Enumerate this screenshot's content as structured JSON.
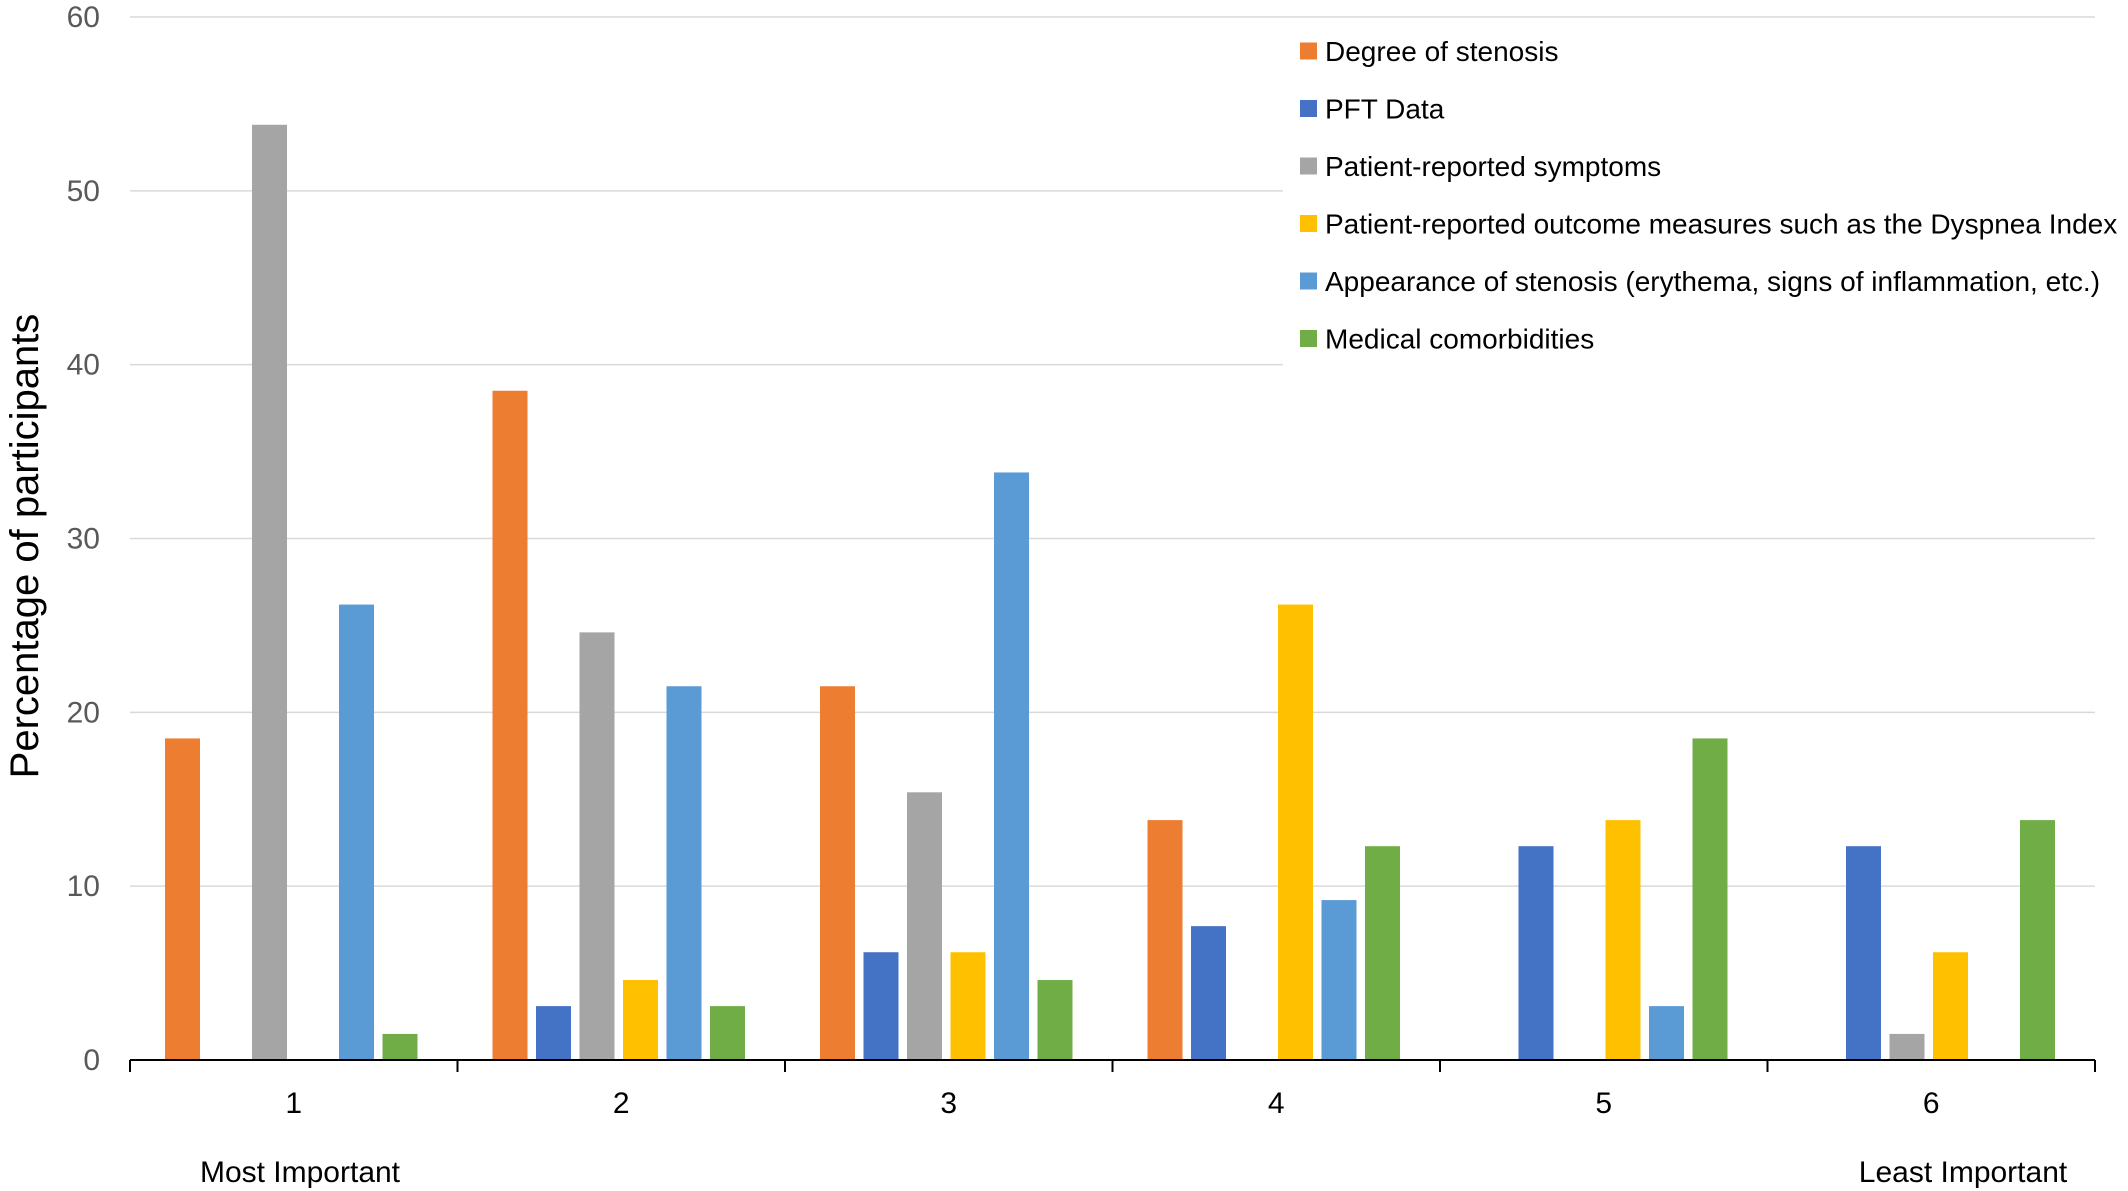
{
  "chart_data": {
    "type": "bar",
    "title": "",
    "xlabel": "",
    "ylabel": "Percentage of participants",
    "ylim": [
      0,
      60
    ],
    "yticks": [
      0,
      10,
      20,
      30,
      40,
      50,
      60
    ],
    "grid": "horizontal",
    "legend_position": "top-right",
    "categories": [
      "1",
      "2",
      "3",
      "4",
      "5",
      "6"
    ],
    "category_notes": {
      "first": "Most Important",
      "last": "Least Important"
    },
    "series": [
      {
        "name": "Degree of stenosis",
        "color": "#ED7D31",
        "values": [
          18.5,
          38.5,
          21.5,
          13.8,
          0,
          0
        ]
      },
      {
        "name": "PFT Data",
        "color": "#4472C4",
        "values": [
          0,
          3.1,
          6.2,
          7.7,
          12.3,
          12.3
        ]
      },
      {
        "name": "Patient-reported symptoms",
        "color": "#A5A5A5",
        "values": [
          53.8,
          24.6,
          15.4,
          0,
          0,
          1.5
        ]
      },
      {
        "name": "Patient-reported outcome measures such as the Dyspnea Index",
        "color": "#FFC000",
        "values": [
          0,
          4.6,
          6.2,
          26.2,
          13.8,
          6.2
        ]
      },
      {
        "name": "Appearance of stenosis (erythema, signs of inflammation, etc.)",
        "color": "#5B9BD5",
        "values": [
          26.2,
          21.5,
          33.8,
          9.2,
          3.1,
          0
        ]
      },
      {
        "name": "Medical comorbidities",
        "color": "#70AD47",
        "values": [
          1.5,
          3.1,
          4.6,
          12.3,
          18.5,
          13.8
        ]
      }
    ]
  }
}
